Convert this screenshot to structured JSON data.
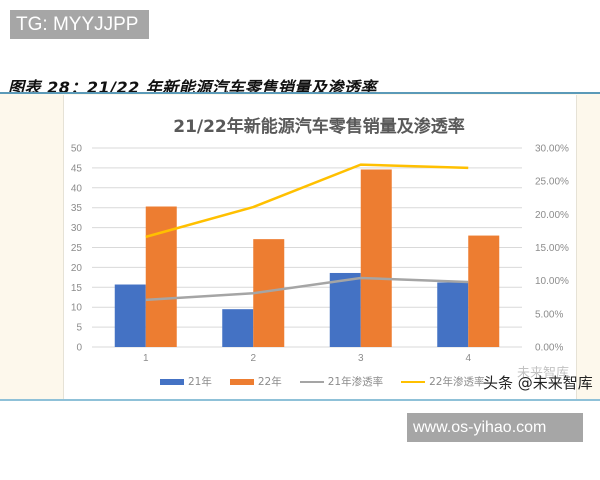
{
  "header": {
    "tg_badge": "TG: MYYJJPP",
    "figure_caption": "图表 28：21/22 年新能源汽车零售销量及渗透率"
  },
  "footer": {
    "watermark": "头条 @未来智库",
    "watermark_faint": "未来智库",
    "url_badge": "www.os-yihao.com"
  },
  "colors": {
    "series_21": "#4472c4",
    "series_22": "#ed7d31",
    "rate_21": "#a5a5a5",
    "rate_22": "#ffc000",
    "frame_bg": "#fdf8ec",
    "frame_border": "#5b9ab8"
  },
  "chart_data": {
    "type": "bar",
    "title": "21/22年新能源汽车零售销量及渗透率",
    "xlabel": "",
    "ylabel": "",
    "categories": [
      "1",
      "2",
      "3",
      "4"
    ],
    "series": [
      {
        "name": "21年",
        "type": "bar",
        "axis": "left",
        "values": [
          15.7,
          9.5,
          18.6,
          16.2
        ]
      },
      {
        "name": "22年",
        "type": "bar",
        "axis": "left",
        "values": [
          35.3,
          27.1,
          44.6,
          28.0
        ]
      },
      {
        "name": "21年渗透率",
        "type": "line",
        "axis": "right",
        "values": [
          7.1,
          8.1,
          10.4,
          9.8
        ]
      },
      {
        "name": "22年渗透率",
        "type": "line",
        "axis": "right",
        "values": [
          16.6,
          21.1,
          27.5,
          27.0
        ]
      }
    ],
    "ylim": [
      0,
      50
    ],
    "y_ticks": [
      "0",
      "5",
      "10",
      "15",
      "20",
      "25",
      "30",
      "35",
      "40",
      "45",
      "50"
    ],
    "y2lim": [
      0,
      30
    ],
    "y2_ticks": [
      "0.00%",
      "5.00%",
      "10.00%",
      "15.00%",
      "20.00%",
      "25.00%",
      "30.00%"
    ],
    "grid": true,
    "legend_position": "bottom",
    "legend": [
      "21年",
      "22年",
      "21年渗透率",
      "22年渗透率"
    ]
  }
}
